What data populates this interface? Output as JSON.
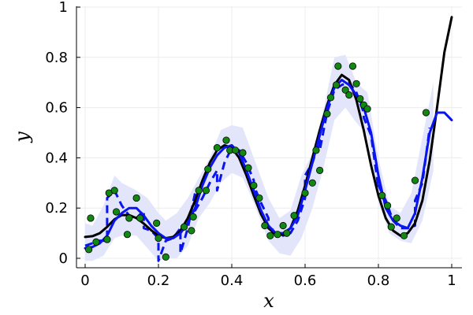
{
  "chart_data": {
    "type": "line",
    "title": "",
    "xlabel": "x",
    "ylabel": "y",
    "xlim": [
      0,
      1
    ],
    "ylim": [
      0,
      1
    ],
    "grid": true,
    "legend": "none",
    "x_ticks": [
      0,
      0.2,
      0.4,
      0.6,
      0.8,
      1
    ],
    "x_tick_labels": [
      "0",
      "0.2",
      "0.4",
      "0.6",
      "0.8",
      "1"
    ],
    "y_ticks": [
      0,
      0.2,
      0.4,
      0.6,
      0.8,
      1
    ],
    "y_tick_labels": [
      "0",
      "0.2",
      "0.4",
      "0.6",
      "0.8",
      "1"
    ],
    "colors": {
      "band": "#e3e6fa",
      "true_curve": "#000000",
      "fit_solid": "#0a14ee",
      "fit_dashed": "#0a14ee",
      "points": "#118811",
      "point_edge": "#000000",
      "grid": "#ececec"
    },
    "band": {
      "x": [
        0.0,
        0.02,
        0.05,
        0.08,
        0.1,
        0.14,
        0.17,
        0.2,
        0.22,
        0.25,
        0.28,
        0.31,
        0.34,
        0.37,
        0.4,
        0.43,
        0.46,
        0.5,
        0.53,
        0.56,
        0.59,
        0.62,
        0.65,
        0.68,
        0.71,
        0.74,
        0.77,
        0.8,
        0.83,
        0.86,
        0.89,
        0.92,
        0.95
      ],
      "lower": [
        -0.01,
        -0.01,
        0.01,
        0.08,
        0.09,
        0.09,
        0.04,
        -0.01,
        0.0,
        0.0,
        0.05,
        0.16,
        0.22,
        0.3,
        0.34,
        0.32,
        0.22,
        0.07,
        0.02,
        0.01,
        0.08,
        0.2,
        0.36,
        0.55,
        0.6,
        0.54,
        0.49,
        0.22,
        0.1,
        0.07,
        0.06,
        0.15,
        0.35
      ],
      "upper": [
        0.14,
        0.13,
        0.21,
        0.33,
        0.3,
        0.27,
        0.24,
        0.18,
        0.15,
        0.18,
        0.24,
        0.32,
        0.4,
        0.51,
        0.53,
        0.52,
        0.4,
        0.24,
        0.16,
        0.19,
        0.33,
        0.42,
        0.59,
        0.8,
        0.81,
        0.7,
        0.66,
        0.4,
        0.21,
        0.18,
        0.26,
        0.48,
        0.7
      ]
    },
    "series": [
      {
        "style": "solid-black",
        "x": [
          0,
          0.02,
          0.04,
          0.06,
          0.08,
          0.1,
          0.12,
          0.14,
          0.16,
          0.18,
          0.2,
          0.22,
          0.24,
          0.26,
          0.28,
          0.3,
          0.32,
          0.34,
          0.36,
          0.38,
          0.4,
          0.42,
          0.44,
          0.46,
          0.48,
          0.5,
          0.52,
          0.54,
          0.56,
          0.58,
          0.6,
          0.62,
          0.64,
          0.66,
          0.68,
          0.7,
          0.72,
          0.74,
          0.76,
          0.78,
          0.8,
          0.82,
          0.84,
          0.86,
          0.88,
          0.9,
          0.92,
          0.94,
          0.96,
          0.98,
          1.0
        ],
        "y": [
          0.085,
          0.088,
          0.1,
          0.125,
          0.155,
          0.172,
          0.172,
          0.16,
          0.138,
          0.112,
          0.09,
          0.08,
          0.085,
          0.11,
          0.16,
          0.23,
          0.31,
          0.38,
          0.43,
          0.45,
          0.44,
          0.4,
          0.33,
          0.25,
          0.175,
          0.12,
          0.095,
          0.095,
          0.12,
          0.19,
          0.29,
          0.4,
          0.51,
          0.61,
          0.69,
          0.73,
          0.71,
          0.63,
          0.51,
          0.37,
          0.25,
          0.16,
          0.11,
          0.09,
          0.1,
          0.14,
          0.23,
          0.39,
          0.6,
          0.82,
          0.96
        ]
      },
      {
        "style": "solid-blue",
        "x": [
          0,
          0.02,
          0.04,
          0.06,
          0.08,
          0.1,
          0.12,
          0.14,
          0.16,
          0.18,
          0.2,
          0.22,
          0.24,
          0.26,
          0.28,
          0.3,
          0.32,
          0.34,
          0.36,
          0.38,
          0.4,
          0.42,
          0.44,
          0.46,
          0.48,
          0.5,
          0.52,
          0.54,
          0.56,
          0.58,
          0.6,
          0.62,
          0.64,
          0.66,
          0.68,
          0.7,
          0.72,
          0.74,
          0.76,
          0.78,
          0.8,
          0.82,
          0.84,
          0.86,
          0.88,
          0.9,
          0.92,
          0.94,
          0.96,
          0.98,
          1.0
        ],
        "y": [
          0.04,
          0.045,
          0.06,
          0.09,
          0.15,
          0.18,
          0.2,
          0.2,
          0.17,
          0.13,
          0.1,
          0.08,
          0.08,
          0.1,
          0.14,
          0.2,
          0.29,
          0.36,
          0.41,
          0.44,
          0.45,
          0.42,
          0.35,
          0.27,
          0.19,
          0.13,
          0.1,
          0.1,
          0.12,
          0.17,
          0.27,
          0.38,
          0.49,
          0.6,
          0.68,
          0.71,
          0.69,
          0.65,
          0.6,
          0.5,
          0.33,
          0.2,
          0.15,
          0.13,
          0.12,
          0.18,
          0.32,
          0.5,
          0.58,
          0.58,
          0.55
        ]
      },
      {
        "style": "dashed-blue",
        "x": [
          0.0,
          0.02,
          0.04,
          0.06,
          0.06,
          0.08,
          0.1,
          0.12,
          0.14,
          0.16,
          0.16,
          0.18,
          0.2,
          0.2,
          0.22,
          0.24,
          0.26,
          0.26,
          0.28,
          0.3,
          0.3,
          0.32,
          0.34,
          0.36,
          0.36,
          0.38,
          0.4,
          0.42,
          0.44,
          0.46,
          0.46,
          0.48,
          0.5,
          0.5,
          0.52,
          0.54,
          0.56,
          0.58,
          0.6,
          0.6,
          0.62,
          0.64,
          0.64,
          0.66,
          0.68,
          0.7,
          0.72,
          0.74,
          0.76,
          0.76,
          0.78,
          0.8,
          0.8,
          0.82,
          0.84,
          0.86,
          0.88,
          0.9,
          0.9,
          0.92,
          0.94
        ],
        "y": [
          0.05,
          0.06,
          0.07,
          0.07,
          0.24,
          0.27,
          0.21,
          0.17,
          0.16,
          0.19,
          0.12,
          0.11,
          0.08,
          -0.01,
          0.07,
          0.08,
          0.12,
          0.02,
          0.12,
          0.26,
          0.19,
          0.24,
          0.3,
          0.35,
          0.27,
          0.38,
          0.44,
          0.43,
          0.38,
          0.31,
          0.29,
          0.22,
          0.16,
          0.12,
          0.11,
          0.09,
          0.1,
          0.15,
          0.24,
          0.33,
          0.38,
          0.47,
          0.43,
          0.58,
          0.67,
          0.69,
          0.7,
          0.66,
          0.58,
          0.56,
          0.49,
          0.28,
          0.29,
          0.23,
          0.15,
          0.12,
          0.12,
          0.13,
          0.23,
          0.3,
          0.52
        ]
      }
    ],
    "points": {
      "x": [
        0.01,
        0.015,
        0.03,
        0.06,
        0.065,
        0.08,
        0.085,
        0.115,
        0.12,
        0.14,
        0.15,
        0.195,
        0.2,
        0.22,
        0.27,
        0.29,
        0.295,
        0.31,
        0.33,
        0.335,
        0.36,
        0.385,
        0.395,
        0.41,
        0.43,
        0.445,
        0.46,
        0.475,
        0.49,
        0.505,
        0.525,
        0.54,
        0.55,
        0.57,
        0.6,
        0.62,
        0.63,
        0.64,
        0.66,
        0.67,
        0.685,
        0.69,
        0.71,
        0.72,
        0.73,
        0.74,
        0.75,
        0.76,
        0.77,
        0.81,
        0.825,
        0.835,
        0.85,
        0.87,
        0.9,
        0.93
      ],
      "y": [
        0.035,
        0.16,
        0.065,
        0.075,
        0.26,
        0.27,
        0.185,
        0.095,
        0.16,
        0.24,
        0.16,
        0.14,
        0.08,
        0.005,
        0.125,
        0.11,
        0.165,
        0.27,
        0.27,
        0.355,
        0.44,
        0.47,
        0.43,
        0.43,
        0.42,
        0.36,
        0.29,
        0.24,
        0.13,
        0.09,
        0.095,
        0.13,
        0.1,
        0.17,
        0.26,
        0.3,
        0.43,
        0.35,
        0.575,
        0.64,
        0.69,
        0.765,
        0.67,
        0.65,
        0.765,
        0.695,
        0.635,
        0.61,
        0.595,
        0.25,
        0.21,
        0.125,
        0.16,
        0.09,
        0.31,
        0.58
      ]
    }
  }
}
